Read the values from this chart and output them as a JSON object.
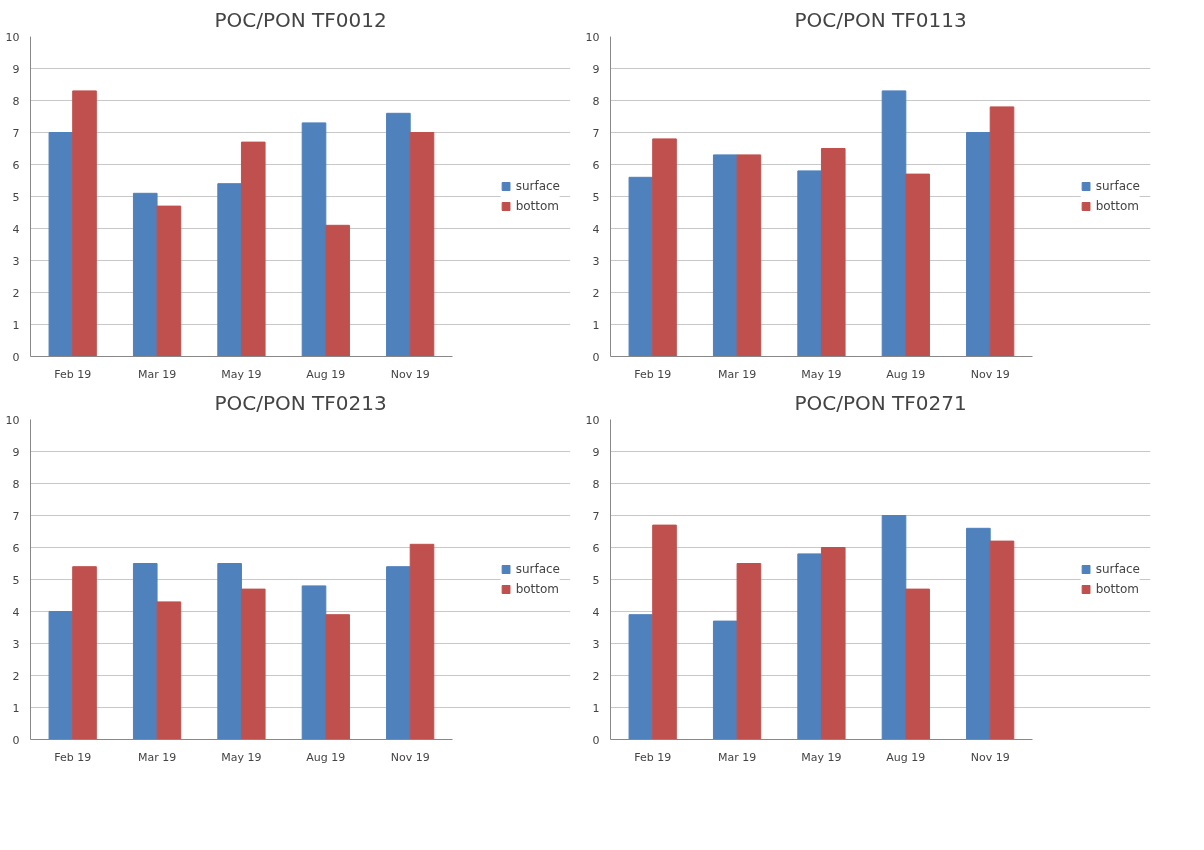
{
  "chart_data": [
    {
      "type": "bar",
      "title": "POC/PON TF0012",
      "categories": [
        "Feb 19",
        "Mar 19",
        "May 19",
        "Aug 19",
        "Nov 19"
      ],
      "ylim": [
        0,
        10
      ],
      "yticks": [
        0,
        1,
        2,
        3,
        4,
        5,
        6,
        7,
        8,
        9,
        10
      ],
      "grid": "y",
      "legend": "right",
      "series": [
        {
          "name": "surface",
          "color": "#4f81bd",
          "values": [
            7.0,
            5.1,
            5.4,
            7.3,
            7.6
          ]
        },
        {
          "name": "bottom",
          "color": "#c0504d",
          "values": [
            8.3,
            4.7,
            6.7,
            4.1,
            7.0
          ]
        }
      ]
    },
    {
      "type": "bar",
      "title": "POC/PON TF0113",
      "categories": [
        "Feb 19",
        "Mar 19",
        "May 19",
        "Aug 19",
        "Nov 19"
      ],
      "ylim": [
        0,
        10
      ],
      "yticks": [
        0,
        1,
        2,
        3,
        4,
        5,
        6,
        7,
        8,
        9,
        10
      ],
      "grid": "y",
      "legend": "right",
      "series": [
        {
          "name": "surface",
          "color": "#4f81bd",
          "values": [
            5.6,
            6.3,
            5.8,
            8.3,
            7.0
          ]
        },
        {
          "name": "bottom",
          "color": "#c0504d",
          "values": [
            6.8,
            6.3,
            6.5,
            5.7,
            7.8
          ]
        }
      ]
    },
    {
      "type": "bar",
      "title": "POC/PON TF0213",
      "categories": [
        "Feb 19",
        "Mar 19",
        "May 19",
        "Aug 19",
        "Nov 19"
      ],
      "ylim": [
        0,
        10
      ],
      "yticks": [
        0,
        1,
        2,
        3,
        4,
        5,
        6,
        7,
        8,
        9,
        10
      ],
      "grid": "y",
      "legend": "right",
      "series": [
        {
          "name": "surface",
          "color": "#4f81bd",
          "values": [
            4.0,
            5.5,
            5.5,
            4.8,
            5.4
          ]
        },
        {
          "name": "bottom",
          "color": "#c0504d",
          "values": [
            5.4,
            4.3,
            4.7,
            3.9,
            6.1
          ]
        }
      ]
    },
    {
      "type": "bar",
      "title": "POC/PON TF0271",
      "categories": [
        "Feb 19",
        "Mar 19",
        "May 19",
        "Aug 19",
        "Nov 19"
      ],
      "ylim": [
        0,
        10
      ],
      "yticks": [
        0,
        1,
        2,
        3,
        4,
        5,
        6,
        7,
        8,
        9,
        10
      ],
      "grid": "y",
      "legend": "right",
      "series": [
        {
          "name": "surface",
          "color": "#4f81bd",
          "values": [
            3.9,
            3.7,
            5.8,
            7.0,
            6.6
          ]
        },
        {
          "name": "bottom",
          "color": "#c0504d",
          "values": [
            6.7,
            5.5,
            6.0,
            4.7,
            6.2
          ]
        }
      ]
    }
  ]
}
